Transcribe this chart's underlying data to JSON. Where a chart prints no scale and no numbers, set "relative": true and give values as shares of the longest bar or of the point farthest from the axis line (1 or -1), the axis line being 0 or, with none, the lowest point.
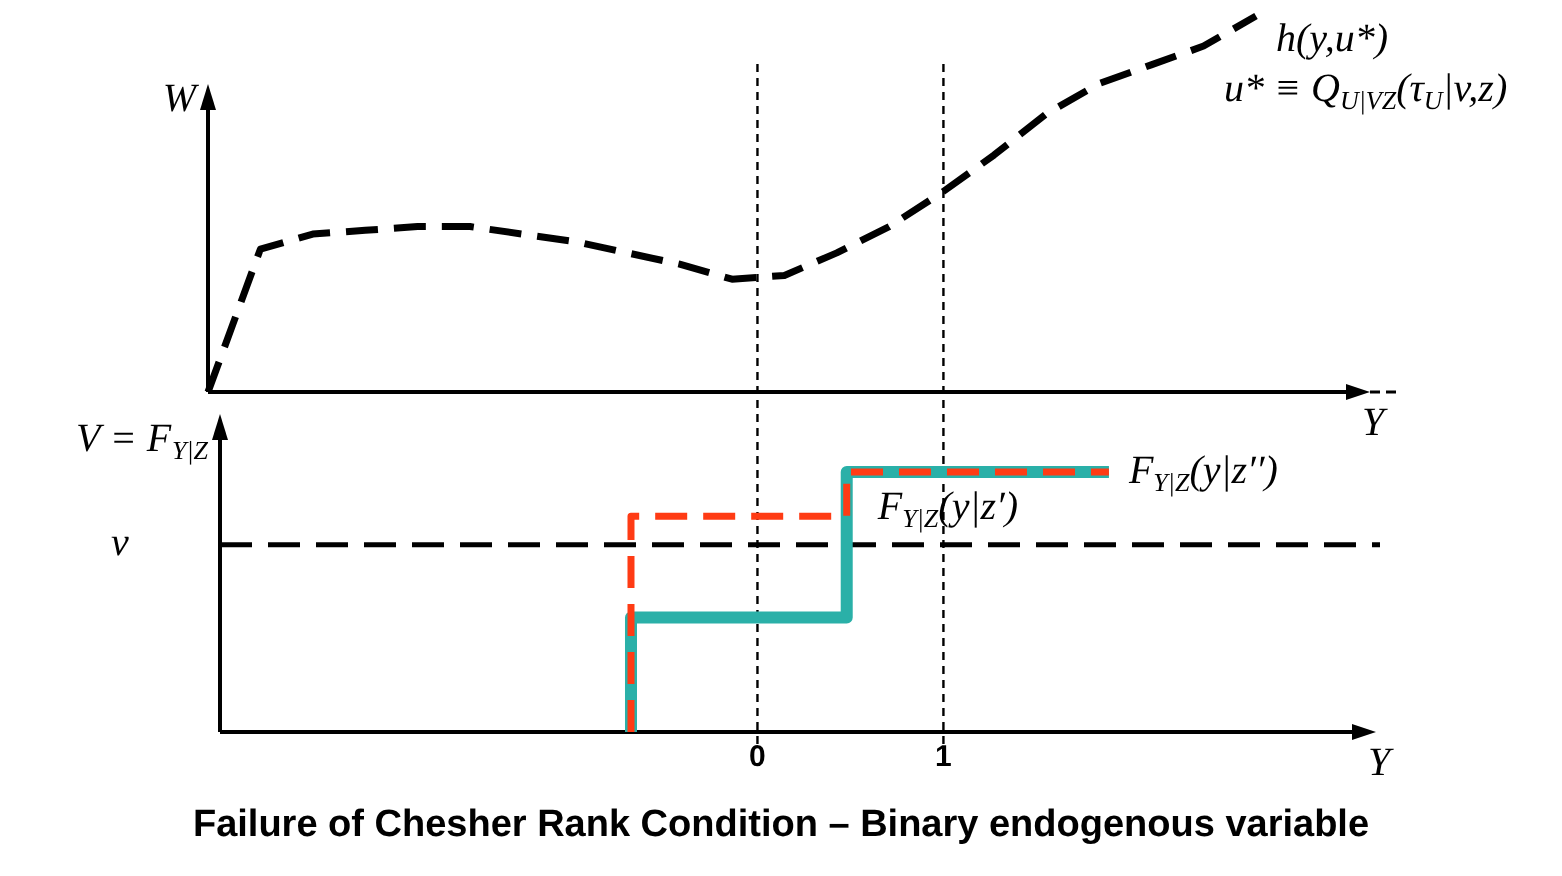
{
  "chart_data": [
    {
      "type": "line",
      "xlabel": "Y",
      "ylabel": "W",
      "categories": [
        null,
        null,
        null,
        null,
        null,
        null,
        null,
        null,
        null,
        null,
        null,
        null,
        null,
        null,
        null,
        null,
        null,
        null,
        null,
        null,
        null
      ],
      "relative": true,
      "tick_labels": false,
      "grid": false,
      "legend": false,
      "marker": "none",
      "series": [
        {
          "name": "h(y,u*)",
          "color": "#000000",
          "line_style": "dashed",
          "values": [
            0,
            0.38,
            0.42,
            0.43,
            0.44,
            0.44,
            0.42,
            0.4,
            0.37,
            0.34,
            0.3,
            0.31,
            0.37,
            0.44,
            0.53,
            0.63,
            0.74,
            0.82,
            0.87,
            0.92,
            1.0
          ]
        }
      ],
      "annotations": [
        "u* ≡ Q$_{U|VZ}$(τ$_{U}$|v,z)"
      ]
    },
    {
      "type": "line",
      "title": "Failure of Chesher Rank Condition – Binary endogenous variable",
      "xlabel": "Y",
      "ylabel": "V = F$_{Y|Z}$",
      "xlim": [
        -2.89,
        3.24
      ],
      "xticks": [
        0,
        1
      ],
      "relative": true,
      "tick_labels": "x",
      "grid": false,
      "legend": false,
      "marker": "none",
      "series": [
        {
          "name": "F$_{Y|Z}$(y|z′)",
          "color": "#2ab0a8",
          "line_style": "solid",
          "x": [
            -0.68,
            -0.68,
            0.48,
            0.48,
            1.89
          ],
          "values": [
            0,
            0.44,
            0.44,
            1,
            1
          ]
        },
        {
          "name": "F$_{Y|Z}$(y|z′′)",
          "color": "#ff3b14",
          "line_style": "dashed",
          "x": [
            -0.68,
            -0.68,
            0.48,
            0.48,
            1.89
          ],
          "values": [
            0,
            0.83,
            0.83,
            1,
            1
          ]
        }
      ],
      "ref_lines": [
        {
          "axis": "x",
          "value": 0,
          "color": "#000000",
          "line_style": "dashed"
        },
        {
          "axis": "x",
          "value": 1,
          "color": "#000000",
          "line_style": "dashed"
        },
        {
          "axis": "y",
          "value": 0.72,
          "label": "v",
          "color": "#000000",
          "line_style": "dashed"
        }
      ]
    }
  ]
}
